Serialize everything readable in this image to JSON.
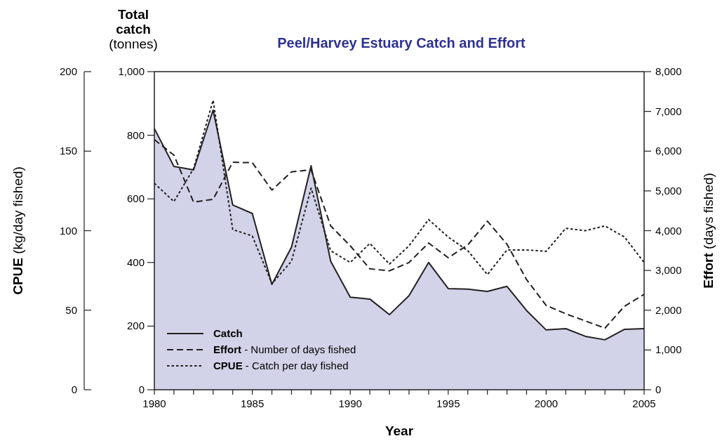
{
  "chart_data": {
    "type": "line",
    "title": "Peel/Harvey Estuary Catch and Effort",
    "xlabel": "Year",
    "ylabel": "Total catch (tonnes)",
    "y2label": "Effort (days fished)",
    "y3label": "CPUE (kg/day fished)",
    "x": [
      1980,
      1981,
      1982,
      1983,
      1984,
      1985,
      1986,
      1987,
      1988,
      1989,
      1990,
      1991,
      1992,
      1993,
      1994,
      1995,
      1996,
      1997,
      1998,
      1999,
      2000,
      2001,
      2002,
      2003,
      2004,
      2005
    ],
    "xlim": [
      1980,
      2005
    ],
    "xticks": [
      1980,
      {
        "value": 1981,
        "label": null
      },
      {
        "value": 1982,
        "label": null
      },
      {
        "value": 1983,
        "label": null
      },
      {
        "value": 1984,
        "label": null
      },
      1985,
      {
        "value": 1986,
        "label": null
      },
      {
        "value": 1987,
        "label": null
      },
      {
        "value": 1988,
        "label": null
      },
      {
        "value": 1989,
        "label": null
      },
      1990,
      {
        "value": 1991,
        "label": null
      },
      {
        "value": 1992,
        "label": null
      },
      {
        "value": 1993,
        "label": null
      },
      {
        "value": 1994,
        "label": null
      },
      1995,
      {
        "value": 1996,
        "label": null
      },
      {
        "value": 1997,
        "label": null
      },
      {
        "value": 1998,
        "label": null
      },
      {
        "value": 1999,
        "label": null
      },
      2000,
      {
        "value": 2001,
        "label": null
      },
      {
        "value": 2002,
        "label": null
      },
      {
        "value": 2003,
        "label": null
      },
      {
        "value": 2004,
        "label": null
      },
      2005
    ],
    "ylim": [
      0,
      1000
    ],
    "yticks": [
      0,
      200,
      400,
      600,
      800,
      {
        "value": 1000,
        "label": "1,000"
      }
    ],
    "y2lim": [
      0,
      8000
    ],
    "y2ticks": [
      0,
      {
        "value": 1000,
        "label": "1,000"
      },
      {
        "value": 2000,
        "label": "2,000"
      },
      {
        "value": 3000,
        "label": "3,000"
      },
      {
        "value": 4000,
        "label": "4,000"
      },
      {
        "value": 5000,
        "label": "5,000"
      },
      {
        "value": 6000,
        "label": "6,000"
      },
      {
        "value": 7000,
        "label": "7,000"
      },
      {
        "value": 8000,
        "label": "8,000"
      }
    ],
    "y3lim": [
      0,
      200
    ],
    "y3ticks": [
      0,
      50,
      100,
      150,
      200
    ],
    "legend": "bottom left",
    "grid": false,
    "series": [
      {
        "name": "Catch",
        "type": "area",
        "color": "#231f20",
        "line_style": "solid",
        "values": [
          821,
          702,
          691,
          879,
          581,
          554,
          331,
          448,
          704,
          404,
          291,
          285,
          236,
          296,
          400,
          318,
          316,
          309,
          325,
          249,
          188,
          192,
          168,
          157,
          190,
          192
        ]
      },
      {
        "name": "Effort - Number of days fished",
        "axis": "y2",
        "color": "#231f20",
        "line_style": "dashed",
        "values": [
          6290,
          5900,
          4720,
          4790,
          5720,
          5710,
          5020,
          5480,
          5530,
          4120,
          3620,
          3040,
          2990,
          3200,
          3690,
          3320,
          3640,
          4240,
          3660,
          2770,
          2120,
          1910,
          1730,
          1550,
          2100,
          2400
        ]
      },
      {
        "name": "CPUE - Catch per day fished",
        "axis": "y3",
        "color": "#231f20",
        "line_style": "dotted",
        "values": [
          129.8,
          118.3,
          139,
          182,
          100.7,
          96.7,
          66.7,
          80.8,
          126.7,
          87.4,
          80,
          92,
          79,
          90.5,
          107,
          96,
          87.4,
          72.4,
          87.9,
          87.9,
          87,
          101.5,
          100,
          103,
          96,
          80
        ]
      }
    ]
  }
}
